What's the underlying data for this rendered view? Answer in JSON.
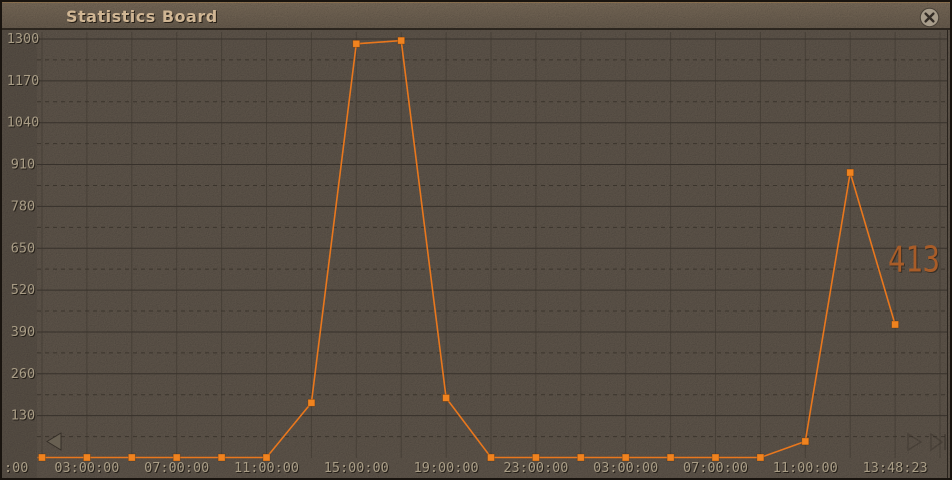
{
  "window": {
    "title": "Statistics Board"
  },
  "icons": {
    "close": "x-in-circle",
    "scroll_left": "triangle-left",
    "scroll_right": "skip-right"
  },
  "colors": {
    "background": "#474038",
    "line": "#e9771d",
    "marker": "#f0831f",
    "value_label": "#a85c28",
    "axis_text": "#a99d86",
    "title_text": "#d0b694"
  },
  "chart_data": {
    "type": "line",
    "title": "Statistics Board",
    "values": [
      0,
      0,
      0,
      0,
      0,
      0,
      170,
      1285,
      1295,
      185,
      0,
      0,
      0,
      0,
      0,
      0,
      0,
      50,
      885,
      413
    ],
    "ylim": [
      0,
      1300
    ],
    "y_tick_labels": [
      "1300",
      "1170",
      "1040",
      "910",
      "780",
      "650",
      "520",
      "390",
      "260",
      "130"
    ],
    "x_tick_labels": [
      ":00",
      "03:00:00",
      "07:00:00",
      "11:00:00",
      "15:00:00",
      "19:00:00",
      "23:00:00",
      "03:00:00",
      "07:00:00",
      "11:00:00",
      "13:48:23"
    ],
    "x_tick_sample_indices": [
      -1,
      1,
      3,
      5,
      7,
      9,
      11,
      13,
      15,
      17,
      19
    ],
    "current_value_label": "413",
    "grid": true,
    "legend": "none",
    "marker_shape": "square"
  }
}
